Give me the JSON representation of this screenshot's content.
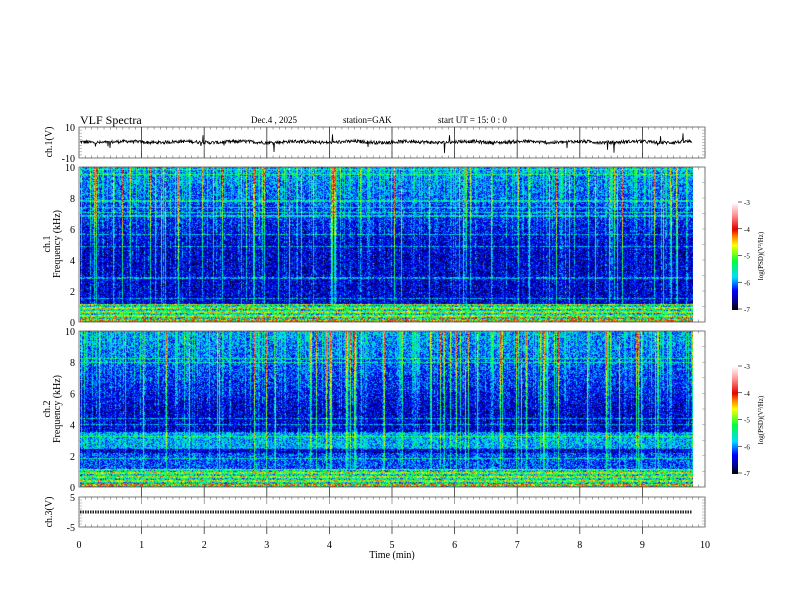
{
  "header": {
    "title": "VLF  Spectra",
    "date": "Dec.4  , 2025",
    "station": "station=GAK",
    "start": "start  UT  =    15: 0   : 0"
  },
  "chart_data": [
    {
      "type": "line",
      "name": "ch1 waveform",
      "ylabel": "ch.1(V)",
      "ylim": [
        -10,
        10
      ],
      "yticks": [
        "10",
        "-10"
      ],
      "xlim": [
        0,
        10
      ],
      "data_end_min": 9.8,
      "baseline": 0
    },
    {
      "type": "heatmap",
      "name": "ch1 spectrogram",
      "ylabel": "ch.1\nFrequency (kHz)",
      "ylabel_top": "ch.1",
      "ylabel_bottom": "Frequency  (kHz)",
      "ylim": [
        0,
        10
      ],
      "yticks": [
        "0",
        "2",
        "4",
        "6",
        "8",
        "10"
      ],
      "xlim": [
        0,
        10
      ],
      "colorbar": {
        "label": "log(PSD)(V²/Hz)",
        "range": [
          -7,
          -3
        ],
        "ticks": [
          "-3",
          "-4",
          "-5",
          "-6",
          "-7"
        ]
      }
    },
    {
      "type": "heatmap",
      "name": "ch2 spectrogram",
      "ylabel_top": "ch.2",
      "ylabel_bottom": "Frequency  (kHz)",
      "ylim": [
        0,
        10
      ],
      "yticks": [
        "0",
        "2",
        "4",
        "6",
        "8",
        "10"
      ],
      "xlim": [
        0,
        10
      ],
      "colorbar": {
        "label": "log(PSD)(V²/Hz)",
        "range": [
          -7,
          -3
        ],
        "ticks": [
          "-3",
          "-4",
          "-5",
          "-6",
          "-7"
        ]
      }
    },
    {
      "type": "line",
      "name": "ch3 waveform",
      "ylabel": "ch.3(V)",
      "ylim": [
        -5,
        5
      ],
      "yticks": [
        "5",
        "-5"
      ],
      "baseline": 0,
      "xlabel": "Time  (min)",
      "xlim": [
        0,
        10
      ],
      "xticks": [
        "0",
        "1",
        "2",
        "3",
        "4",
        "5",
        "6",
        "7",
        "8",
        "9",
        "10"
      ]
    }
  ]
}
